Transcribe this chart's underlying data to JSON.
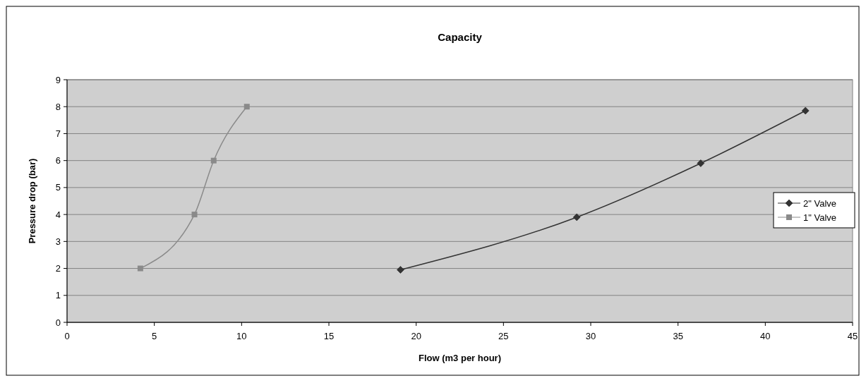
{
  "chart_data": {
    "type": "line",
    "title": "Capacity",
    "xlabel": "Flow (m3 per hour)",
    "ylabel": "Pressure drop (bar)",
    "xlim": [
      0,
      45
    ],
    "xticks": [
      0,
      5,
      10,
      15,
      20,
      25,
      30,
      35,
      40,
      45
    ],
    "ylim": [
      0,
      9
    ],
    "yticks": [
      0,
      1,
      2,
      3,
      4,
      5,
      6,
      7,
      8,
      9
    ],
    "grid": "y",
    "legend": "right",
    "series": [
      {
        "name": "2\" Valve",
        "color": "#333333",
        "marker": "diamond",
        "x": [
          19.1,
          29.2,
          36.3,
          42.3
        ],
        "values": [
          1.95,
          3.9,
          5.9,
          7.85
        ]
      },
      {
        "name": "1\" Valve",
        "color": "#8a8a8a",
        "marker": "square",
        "x": [
          4.2,
          7.3,
          8.4,
          10.3
        ],
        "values": [
          2,
          4,
          6,
          8
        ]
      }
    ]
  }
}
